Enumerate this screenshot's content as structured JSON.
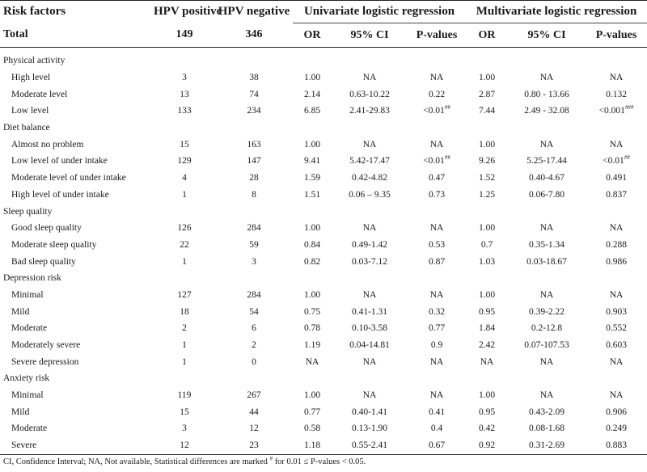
{
  "header": {
    "col_risk": "Risk factors",
    "col_pos": "HPV positive",
    "col_neg": "HPV negative",
    "col_uni": "Univariate logistic regression",
    "col_multi": "Multivariate logistic regression",
    "total_label": "Total",
    "total_pos": "149",
    "total_neg": "346",
    "or": "OR",
    "ci": "95% CI",
    "p": "P-values"
  },
  "sections": [
    {
      "title": "Physical activity",
      "rows": [
        {
          "label": "High level",
          "pos": "3",
          "neg": "38",
          "u_or": "1.00",
          "u_ci": "NA",
          "u_p": "NA",
          "u_sup": "",
          "m_or": "1.00",
          "m_ci": "NA",
          "m_p": "NA",
          "m_sup": ""
        },
        {
          "label": "Moderate level",
          "pos": "13",
          "neg": "74",
          "u_or": "2.14",
          "u_ci": "0.63-10.22",
          "u_p": "0.22",
          "u_sup": "",
          "m_or": "2.87",
          "m_ci": "0.80 - 13.66",
          "m_p": "0.132",
          "m_sup": ""
        },
        {
          "label": "Low level",
          "pos": "133",
          "neg": "234",
          "u_or": "6.85",
          "u_ci": "2.41-29.83",
          "u_p": "<0.01",
          "u_sup": "##",
          "m_or": "7.44",
          "m_ci": "2.49 - 32.08",
          "m_p": "<0.001",
          "m_sup": "###"
        }
      ]
    },
    {
      "title": "Diet balance",
      "rows": [
        {
          "label": "Almost no problem",
          "pos": "15",
          "neg": "163",
          "u_or": "1.00",
          "u_ci": "NA",
          "u_p": "NA",
          "u_sup": "",
          "m_or": "1.00",
          "m_ci": "NA",
          "m_p": "NA",
          "m_sup": ""
        },
        {
          "label": "Low level of under intake",
          "pos": "129",
          "neg": "147",
          "u_or": "9.41",
          "u_ci": "5.42-17.47",
          "u_p": "<0.01",
          "u_sup": "##",
          "m_or": "9.26",
          "m_ci": "5.25-17.44",
          "m_p": "<0.01",
          "m_sup": "##"
        },
        {
          "label": "Moderate level of under intake",
          "pos": "4",
          "neg": "28",
          "u_or": "1.59",
          "u_ci": "0.42-4.82",
          "u_p": "0.47",
          "u_sup": "",
          "m_or": "1.52",
          "m_ci": "0.40-4.67",
          "m_p": "0.491",
          "m_sup": ""
        },
        {
          "label": "High level of under intake",
          "pos": "1",
          "neg": "8",
          "u_or": "1.51",
          "u_ci": "0.06 – 9.35",
          "u_p": "0.73",
          "u_sup": "",
          "m_or": "1.25",
          "m_ci": "0.06-7.80",
          "m_p": "0.837",
          "m_sup": ""
        }
      ]
    },
    {
      "title": "Sleep quality",
      "rows": [
        {
          "label": "Good sleep quality",
          "pos": "126",
          "neg": "284",
          "u_or": "1.00",
          "u_ci": "NA",
          "u_p": "NA",
          "u_sup": "",
          "m_or": "1.00",
          "m_ci": "NA",
          "m_p": "NA",
          "m_sup": ""
        },
        {
          "label": "Moderate sleep quality",
          "pos": "22",
          "neg": "59",
          "u_or": "0.84",
          "u_ci": "0.49-1.42",
          "u_p": "0.53",
          "u_sup": "",
          "m_or": "0.7",
          "m_ci": "0.35-1.34",
          "m_p": "0.288",
          "m_sup": ""
        },
        {
          "label": "Bad sleep quality",
          "pos": "1",
          "neg": "3",
          "u_or": "0.82",
          "u_ci": "0.03-7.12",
          "u_p": "0.87",
          "u_sup": "",
          "m_or": "1.03",
          "m_ci": "0.03-18.67",
          "m_p": "0.986",
          "m_sup": ""
        }
      ]
    },
    {
      "title": "Depression risk",
      "rows": [
        {
          "label": "Minimal",
          "pos": "127",
          "neg": "284",
          "u_or": "1.00",
          "u_ci": "NA",
          "u_p": "NA",
          "u_sup": "",
          "m_or": "1.00",
          "m_ci": "NA",
          "m_p": "NA",
          "m_sup": ""
        },
        {
          "label": "Mild",
          "pos": "18",
          "neg": "54",
          "u_or": "0.75",
          "u_ci": "0.41-1.31",
          "u_p": "0.32",
          "u_sup": "",
          "m_or": "0.95",
          "m_ci": "0.39-2.22",
          "m_p": "0.903",
          "m_sup": ""
        },
        {
          "label": "Moderate",
          "pos": "2",
          "neg": "6",
          "u_or": "0.78",
          "u_ci": "0.10-3.58",
          "u_p": "0.77",
          "u_sup": "",
          "m_or": "1.84",
          "m_ci": "0.2-12.8",
          "m_p": "0.552",
          "m_sup": ""
        },
        {
          "label": "Moderately severe",
          "pos": "1",
          "neg": "2",
          "u_or": "1.19",
          "u_ci": "0.04-14.81",
          "u_p": "0.9",
          "u_sup": "",
          "m_or": "2.42",
          "m_ci": "0.07-107.53",
          "m_p": "0.603",
          "m_sup": ""
        },
        {
          "label": "Severe depression",
          "pos": "1",
          "neg": "0",
          "u_or": "NA",
          "u_ci": "NA",
          "u_p": "NA",
          "u_sup": "",
          "m_or": "NA",
          "m_ci": "NA",
          "m_p": "NA",
          "m_sup": ""
        }
      ]
    },
    {
      "title": "Anxiety risk",
      "rows": [
        {
          "label": "Minimal",
          "pos": "119",
          "neg": "267",
          "u_or": "1.00",
          "u_ci": "NA",
          "u_p": "NA",
          "u_sup": "",
          "m_or": "1.00",
          "m_ci": "NA",
          "m_p": "NA",
          "m_sup": ""
        },
        {
          "label": "Mild",
          "pos": "15",
          "neg": "44",
          "u_or": "0.77",
          "u_ci": "0.40-1.41",
          "u_p": "0.41",
          "u_sup": "",
          "m_or": "0.95",
          "m_ci": "0.43-2.09",
          "m_p": "0.906",
          "m_sup": ""
        },
        {
          "label": "Moderate",
          "pos": "3",
          "neg": "12",
          "u_or": "0.58",
          "u_ci": "0.13-1.90",
          "u_p": "0.4",
          "u_sup": "",
          "m_or": "0.42",
          "m_ci": "0.08-1.68",
          "m_p": "0.249",
          "m_sup": ""
        },
        {
          "label": "Severe",
          "pos": "12",
          "neg": "23",
          "u_or": "1.18",
          "u_ci": "0.55-2.41",
          "u_p": "0.67",
          "u_sup": "",
          "m_or": "0.92",
          "m_ci": "0.31-2.69",
          "m_p": "0.883",
          "m_sup": ""
        }
      ]
    }
  ],
  "footnote": {
    "before": "CI, Confidence Interval; NA, Not available, Statistical differences are marked ",
    "mark": "#",
    "after": " for 0.01 ≤ P-values < 0.05."
  }
}
